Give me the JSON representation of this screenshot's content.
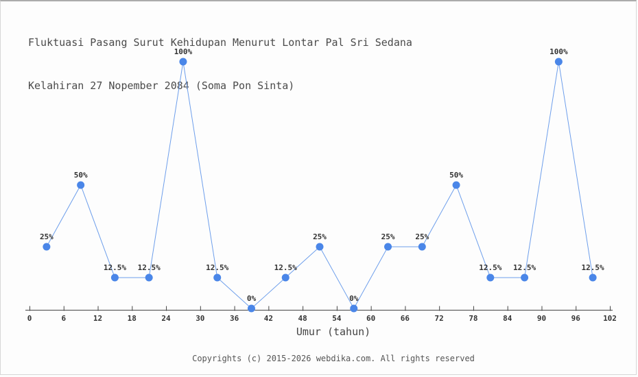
{
  "title": {
    "line1": "Fluktuasi Pasang Surut Kehidupan Menurut Lontar Pal Sri Sedana",
    "line2": "Kelahiran 27 Nopember 2084 (Soma Pon Sinta)"
  },
  "footer": "Copyrights (c) 2015-2026 webdika.com. All rights reserved",
  "colors": {
    "line": "#6d9eeb",
    "marker": "#4a86e8",
    "axis": "#444444",
    "label_text": "#333333",
    "title_text": "#4a4a4a",
    "footer_text": "#555555",
    "background": "#fdfdfd"
  },
  "chart_data": {
    "type": "line",
    "title": "Fluktuasi Pasang Surut Kehidupan Menurut Lontar Pal Sri Sedana",
    "subtitle": "Kelahiran 27 Nopember 2084 (Soma Pon Sinta)",
    "xlabel": "Umur (tahun)",
    "ylabel": "",
    "x": [
      3,
      9,
      15,
      21,
      27,
      33,
      39,
      45,
      51,
      57,
      63,
      69,
      75,
      81,
      87,
      93,
      99
    ],
    "values": [
      25,
      50,
      12.5,
      12.5,
      100,
      12.5,
      0,
      12.5,
      25,
      0,
      25,
      25,
      50,
      12.5,
      12.5,
      100,
      12.5
    ],
    "point_labels": [
      "25%",
      "50%",
      "12.5%",
      "12.5%",
      "100%",
      "12.5%",
      "0%",
      "12.5%",
      "25%",
      "0%",
      "25%",
      "25%",
      "50%",
      "12.5%",
      "12.5%",
      "100%",
      "12.5%"
    ],
    "x_ticks": [
      0,
      6,
      12,
      18,
      24,
      30,
      36,
      42,
      48,
      54,
      60,
      66,
      72,
      78,
      84,
      90,
      96,
      102
    ],
    "xlim": [
      0,
      102
    ],
    "ylim": [
      0,
      100
    ],
    "grid": false,
    "legend": null,
    "marker_radius": 5.5
  }
}
